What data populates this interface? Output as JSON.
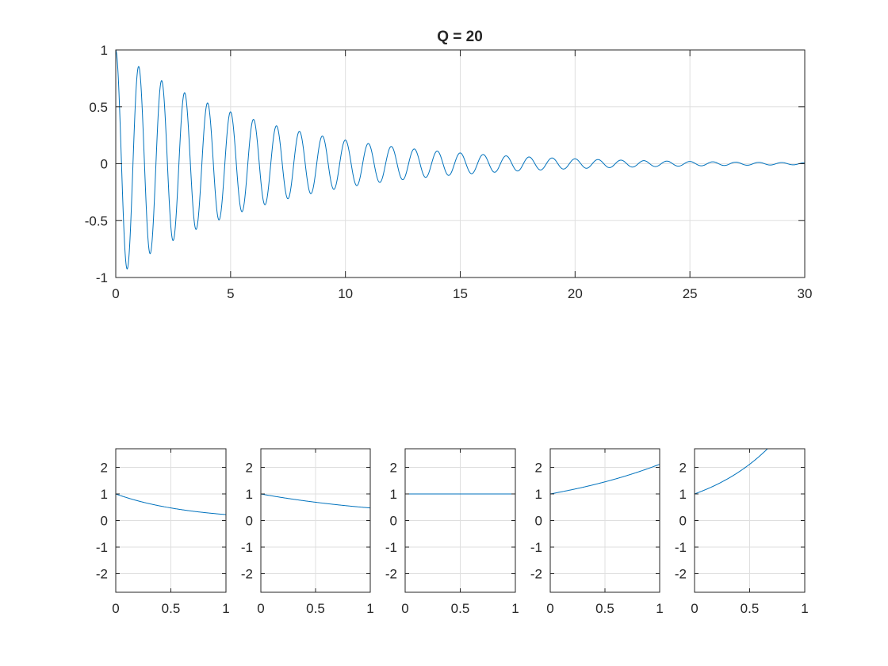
{
  "colors": {
    "line": "#0072bd",
    "axes": "#262626",
    "grid": "#dfdfdf",
    "background": "#ffffff"
  },
  "chart_data": [
    {
      "type": "line",
      "title": "Q = 20",
      "xlabel": "",
      "ylabel": "",
      "xlim": [
        0,
        30
      ],
      "ylim": [
        -1,
        1
      ],
      "grid": true,
      "xticks": [
        "0",
        "5",
        "10",
        "15",
        "20",
        "25",
        "30"
      ],
      "yticks": [
        "-1",
        "-0.5",
        "0",
        "0.5",
        "1"
      ],
      "series": [
        {
          "function": "exp(-t*pi/20)*cos(2*pi*t)",
          "x_range": [
            0,
            30
          ],
          "peaks": [
            [
              0,
              1
            ],
            [
              0.5,
              -0.92
            ],
            [
              1,
              0.85
            ],
            [
              2,
              0.73
            ],
            [
              3,
              0.62
            ],
            [
              4,
              0.53
            ],
            [
              5,
              0.46
            ],
            [
              6,
              0.39
            ],
            [
              10,
              0.21
            ],
            [
              15,
              0.09
            ],
            [
              20,
              0.04
            ],
            [
              30,
              0.01
            ]
          ]
        }
      ]
    },
    {
      "type": "line",
      "title": "",
      "xlim": [
        0,
        1
      ],
      "ylim": [
        -2.7,
        2.7
      ],
      "grid": true,
      "xticks": [
        "0",
        "0.5",
        "1"
      ],
      "yticks": [
        "-2",
        "-1",
        "0",
        "1",
        "2"
      ],
      "series": [
        {
          "function": "exp(-1.5*t)",
          "x": [
            0,
            0.5,
            1
          ],
          "y": [
            1,
            0.47,
            0.22
          ]
        }
      ]
    },
    {
      "type": "line",
      "title": "",
      "xlim": [
        0,
        1
      ],
      "ylim": [
        -2.7,
        2.7
      ],
      "grid": true,
      "xticks": [
        "0",
        "0.5",
        "1"
      ],
      "yticks": [
        "-2",
        "-1",
        "0",
        "1",
        "2"
      ],
      "series": [
        {
          "function": "exp(-0.75*t)",
          "x": [
            0,
            0.5,
            1
          ],
          "y": [
            1,
            0.69,
            0.47
          ]
        }
      ]
    },
    {
      "type": "line",
      "title": "",
      "xlim": [
        0,
        1
      ],
      "ylim": [
        -2.7,
        2.7
      ],
      "grid": true,
      "xticks": [
        "0",
        "0.5",
        "1"
      ],
      "yticks": [
        "-2",
        "-1",
        "0",
        "1",
        "2"
      ],
      "series": [
        {
          "function": "exp(0*t)",
          "x": [
            0,
            0.5,
            1
          ],
          "y": [
            1,
            1,
            1
          ]
        }
      ]
    },
    {
      "type": "line",
      "title": "",
      "xlim": [
        0,
        1
      ],
      "ylim": [
        -2.7,
        2.7
      ],
      "grid": true,
      "xticks": [
        "0",
        "0.5",
        "1"
      ],
      "yticks": [
        "-2",
        "-1",
        "0",
        "1",
        "2"
      ],
      "series": [
        {
          "function": "exp(0.75*t)",
          "x": [
            0,
            0.5,
            1
          ],
          "y": [
            1,
            1.45,
            2.12
          ]
        }
      ]
    },
    {
      "type": "line",
      "title": "",
      "xlim": [
        0,
        1
      ],
      "ylim": [
        -2.7,
        2.7
      ],
      "grid": true,
      "xticks": [
        "0",
        "0.5",
        "1"
      ],
      "yticks": [
        "-2",
        "-1",
        "0",
        "1",
        "2"
      ],
      "series": [
        {
          "function": "exp(1.5*t)",
          "x": [
            0,
            0.5,
            0.66
          ],
          "y": [
            1,
            2.12,
            2.7
          ]
        }
      ]
    }
  ]
}
